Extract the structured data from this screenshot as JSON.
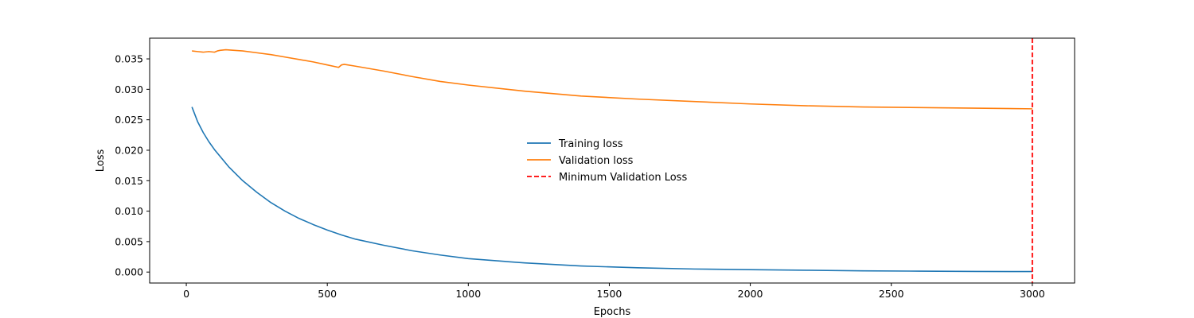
{
  "chart_data": {
    "type": "line",
    "xlabel": "Epochs",
    "ylabel": "Loss",
    "xlim": [
      -130,
      3150
    ],
    "ylim": [
      -0.0018,
      0.0384
    ],
    "xticks": [
      0,
      500,
      1000,
      1500,
      2000,
      2500,
      3000
    ],
    "xtick_labels": [
      "0",
      "500",
      "1000",
      "1500",
      "2000",
      "2500",
      "3000"
    ],
    "yticks": [
      0.0,
      0.005,
      0.01,
      0.015,
      0.02,
      0.025,
      0.03,
      0.035
    ],
    "ytick_labels": [
      "0.000",
      "0.005",
      "0.010",
      "0.015",
      "0.020",
      "0.025",
      "0.030",
      "0.035"
    ],
    "grid": false,
    "legend_position": "center",
    "series": [
      {
        "name": "Training loss",
        "color": "#1f77b4",
        "style": "solid",
        "x": [
          20,
          40,
          60,
          80,
          100,
          150,
          200,
          250,
          300,
          350,
          400,
          450,
          500,
          550,
          600,
          700,
          800,
          900,
          1000,
          1200,
          1400,
          1600,
          1800,
          2000,
          2200,
          2400,
          2600,
          2800,
          3000
        ],
        "y": [
          0.0271,
          0.0247,
          0.0229,
          0.0214,
          0.0201,
          0.0173,
          0.015,
          0.0131,
          0.0114,
          0.01,
          0.0088,
          0.0078,
          0.0069,
          0.0061,
          0.0054,
          0.0044,
          0.0035,
          0.0028,
          0.0022,
          0.0015,
          0.001,
          0.0007,
          0.0005,
          0.0004,
          0.0003,
          0.0002,
          0.00015,
          0.0001,
          8e-05
        ]
      },
      {
        "name": "Validation loss",
        "color": "#ff7f0e",
        "style": "solid",
        "x": [
          20,
          40,
          60,
          80,
          100,
          110,
          120,
          140,
          170,
          200,
          250,
          300,
          350,
          400,
          450,
          500,
          540,
          550,
          560,
          600,
          700,
          800,
          900,
          1000,
          1200,
          1400,
          1600,
          1800,
          2000,
          2200,
          2400,
          2600,
          2800,
          3000
        ],
        "y": [
          0.0363,
          0.0362,
          0.0361,
          0.0362,
          0.0361,
          0.0363,
          0.0364,
          0.0365,
          0.0364,
          0.0363,
          0.036,
          0.0357,
          0.0353,
          0.0349,
          0.0345,
          0.034,
          0.0336,
          0.034,
          0.0341,
          0.0338,
          0.033,
          0.0321,
          0.0313,
          0.0307,
          0.0297,
          0.0289,
          0.0284,
          0.028,
          0.0276,
          0.0273,
          0.0271,
          0.027,
          0.0269,
          0.0268
        ]
      }
    ],
    "vlines": [
      {
        "name": "Minimum Validation Loss",
        "x": 3000,
        "color": "#ff0000",
        "style": "dashed"
      }
    ]
  }
}
